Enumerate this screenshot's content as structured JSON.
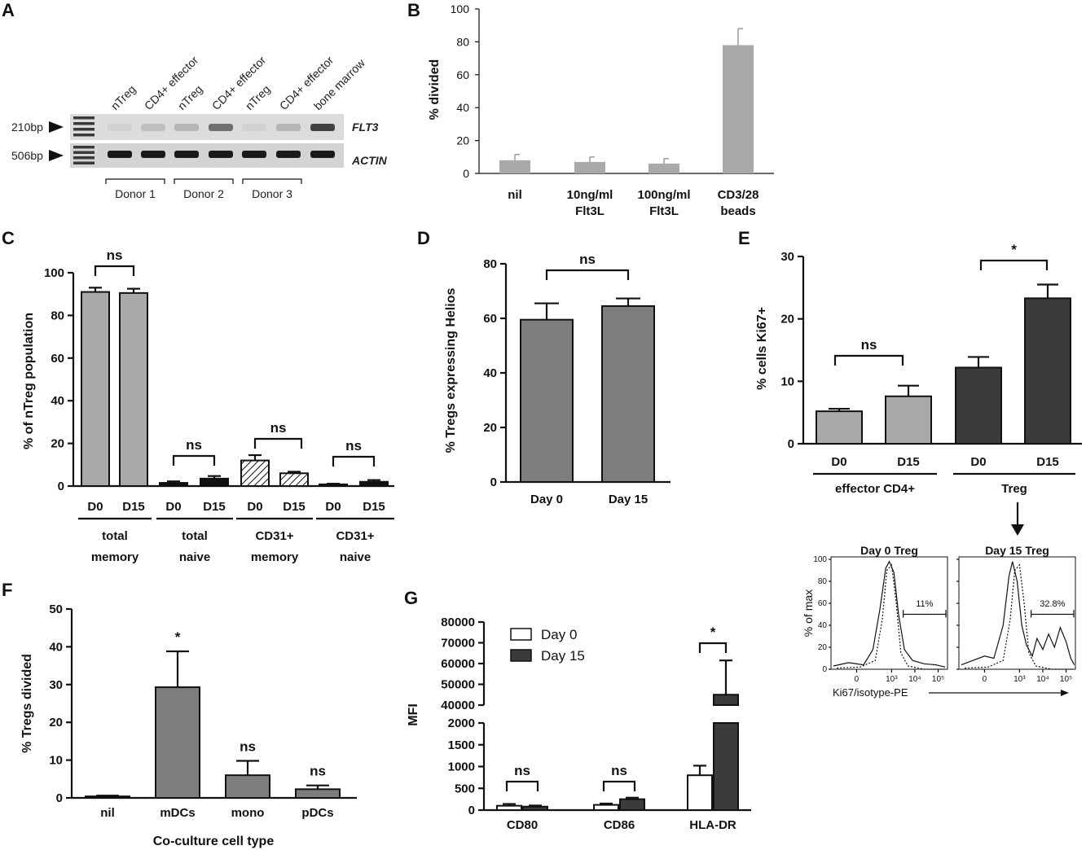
{
  "colors": {
    "light_grey": "#a9a9a9",
    "mid_grey": "#7d7d7d",
    "dark_grey": "#3b3b3b",
    "black": "#111111",
    "gel_background": "#d8d8d8",
    "gel_band": "#1a1a1a"
  },
  "chart_data": [
    {
      "panel": "A",
      "type": "gel",
      "lanes": [
        "nTreg",
        "CD4+ effector",
        "nTreg",
        "CD4+ effector",
        "nTreg",
        "CD4+ effector",
        "bone marrow"
      ],
      "size_markers": [
        "210bp",
        "506bp"
      ],
      "genes": [
        "FLT3",
        "ACTIN"
      ],
      "groups": [
        "Donor 1",
        "Donor 2",
        "Donor 3"
      ],
      "band_intensity_flt3": [
        0.05,
        0.15,
        0.2,
        0.55,
        0.05,
        0.2,
        0.8
      ],
      "band_intensity_actin": [
        1,
        1,
        1,
        1,
        1,
        1,
        1
      ]
    },
    {
      "panel": "B",
      "type": "bar",
      "categories": [
        [
          "nil"
        ],
        [
          "10ng/ml",
          "Flt3L"
        ],
        [
          "100ng/ml",
          "Flt3L"
        ],
        [
          "CD3/28",
          "beads"
        ]
      ],
      "values": [
        8,
        7,
        6,
        78
      ],
      "errors": [
        3.5,
        3,
        3,
        10
      ],
      "ylabel": "% divided",
      "ylim": [
        0,
        100
      ],
      "yticks": [
        0,
        20,
        40,
        60,
        80,
        100
      ],
      "color": "#a9a9a9"
    },
    {
      "panel": "C",
      "type": "bar",
      "groups": [
        [
          "total",
          "memory"
        ],
        [
          "total",
          "naive"
        ],
        [
          "CD31+",
          "memory"
        ],
        [
          "CD31+",
          "naive"
        ]
      ],
      "categories": [
        "D0",
        "D15",
        "D0",
        "D15",
        "D0",
        "D15",
        "D0",
        "D15"
      ],
      "values": [
        91,
        90.5,
        1.5,
        3.5,
        12,
        6,
        0.8,
        2
      ],
      "errors": [
        2,
        2,
        0.7,
        1.2,
        2.5,
        0.7,
        0.3,
        0.8
      ],
      "ylabel": "% of nTreg population",
      "ylim": [
        0,
        100
      ],
      "yticks": [
        0,
        20,
        40,
        60,
        80,
        100
      ],
      "significance": [
        "ns",
        "ns",
        "ns",
        "ns"
      ],
      "fills": [
        "light",
        "light",
        "black",
        "black",
        "hatch",
        "hatch",
        "black",
        "black"
      ]
    },
    {
      "panel": "D",
      "type": "bar",
      "categories": [
        "Day 0",
        "Day 15"
      ],
      "values": [
        59.5,
        64.5
      ],
      "errors": [
        6,
        2.8
      ],
      "ylabel": "% Tregs expressing Helios",
      "ylim": [
        0,
        80
      ],
      "yticks": [
        0,
        20,
        40,
        60,
        80
      ],
      "significance": [
        "ns"
      ],
      "color": "#7d7d7d"
    },
    {
      "panel": "E",
      "type": "bar",
      "groups": [
        "effector CD4+",
        "Treg"
      ],
      "categories": [
        "D0",
        "D15",
        "D0",
        "D15"
      ],
      "values": [
        5.2,
        7.6,
        12.2,
        23.3
      ],
      "errors": [
        0.4,
        1.7,
        1.7,
        2.2
      ],
      "ylabel": "% cells Ki67+",
      "ylim": [
        0,
        30
      ],
      "yticks": [
        0,
        10,
        20,
        30
      ],
      "significance": [
        "ns",
        "*"
      ],
      "colors": [
        "#a9a9a9",
        "#a9a9a9",
        "#3b3b3b",
        "#3b3b3b"
      ]
    },
    {
      "panel": "E-inset",
      "type": "line",
      "titles": [
        "Day 0 Treg",
        "Day 15 Treg"
      ],
      "gate_labels": [
        "11%",
        "32.8%"
      ],
      "ylabel": "% of max",
      "xlabel": "Ki67/isotype-PE",
      "yticks": [
        0,
        20,
        40,
        60,
        80,
        100
      ],
      "xticks": [
        "0",
        "10³",
        "10⁴",
        "10⁵"
      ],
      "ylim": [
        0,
        100
      ]
    },
    {
      "panel": "F",
      "type": "bar",
      "categories": [
        "nil",
        "mDCs",
        "mono",
        "pDCs"
      ],
      "values": [
        0.4,
        29.3,
        6,
        2.3
      ],
      "errors": [
        0.2,
        9.5,
        3.8,
        1
      ],
      "significance": [
        "",
        "*",
        "ns",
        "ns"
      ],
      "ylabel": "% Tregs divided",
      "xlabel": "Co-culture cell type",
      "ylim": [
        0,
        50
      ],
      "yticks": [
        0,
        10,
        20,
        30,
        40,
        50
      ],
      "color": "#7d7d7d"
    },
    {
      "panel": "G",
      "type": "bar",
      "categories": [
        "CD80",
        "CD86",
        "HLA-DR"
      ],
      "series": [
        {
          "name": "Day 0",
          "values": [
            100,
            120,
            800
          ],
          "errors": [
            40,
            30,
            220
          ]
        },
        {
          "name": "Day 15",
          "values": [
            80,
            250,
            45000
          ],
          "errors": [
            25,
            35,
            16500
          ]
        }
      ],
      "significance": [
        "ns",
        "ns",
        "*"
      ],
      "ylabel": "MFI",
      "yticks_lower": [
        0,
        500,
        1000,
        1500,
        2000
      ],
      "yticks_upper": [
        40000,
        50000,
        60000,
        70000,
        80000
      ],
      "ylim": [
        0,
        80000
      ],
      "axis_break": [
        2000,
        40000
      ],
      "legend": "top-left",
      "colors": [
        "#ffffff",
        "#3b3b3b"
      ]
    }
  ]
}
